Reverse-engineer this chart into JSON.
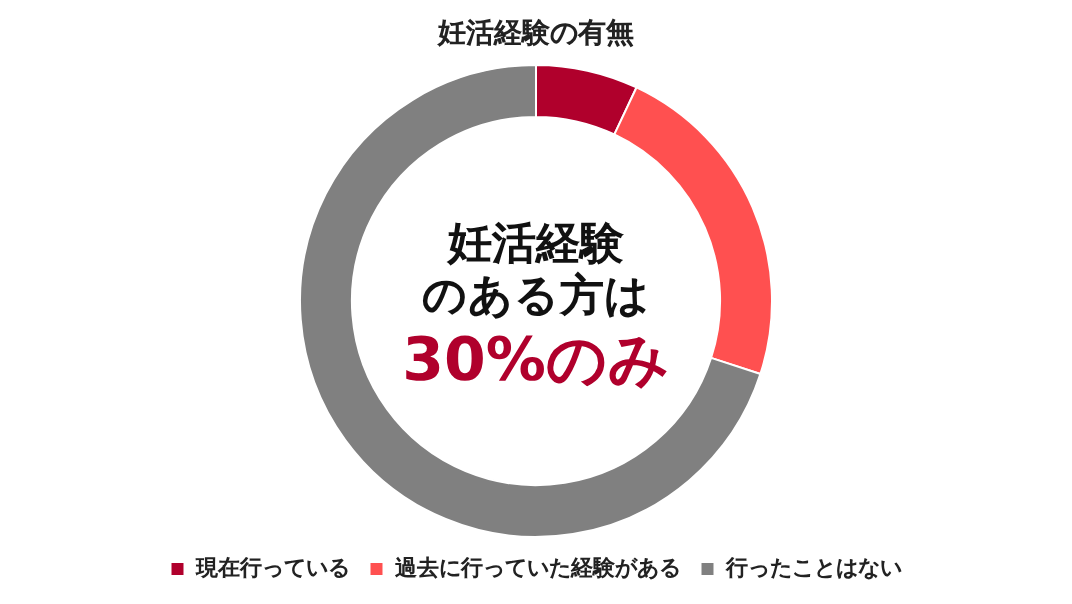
{
  "chart_data": {
    "type": "donut",
    "title": "妊活経験の有無",
    "categories": [
      "現在行っている",
      "過去に行っていた経験がある",
      "行ったことはない"
    ],
    "values": [
      7,
      23,
      70
    ],
    "colors": [
      "#b0002c",
      "#ff5050",
      "#808080"
    ],
    "legend": "bottom",
    "annotations": [
      "妊活経験",
      "のある方は",
      "30%のみ"
    ]
  }
}
